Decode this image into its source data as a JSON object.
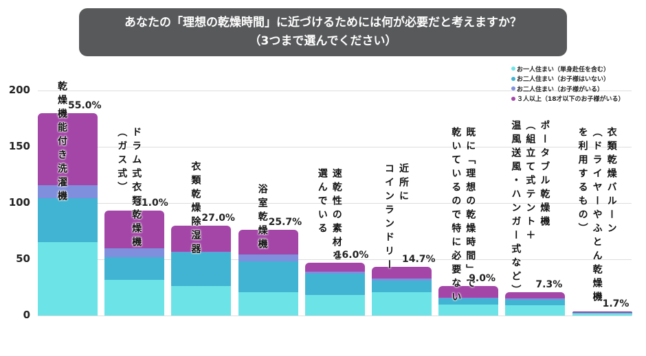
{
  "title": {
    "line1": "あなたの「理想の乾燥時間」に近づけるためには何が必要だと考えますか？",
    "line2": "（3つまで選んでください）"
  },
  "colors": {
    "series": [
      "#6ce3e6",
      "#41b3d3",
      "#7f8fde",
      "#a446a8"
    ]
  },
  "chart_data": {
    "type": "bar",
    "stacked": true,
    "ylim": [
      0,
      200
    ],
    "yticks": [
      "0",
      "50",
      "100",
      "150",
      "200"
    ],
    "grid": true,
    "legend_position": "top-right",
    "categories": [
      [
        "乾燥機能付き洗濯機"
      ],
      [
        "ドラム式衣類乾燥機",
        "（ガス式）"
      ],
      [
        "衣類乾燥除湿器"
      ],
      [
        "浴室乾燥機"
      ],
      [
        "速乾性の素材を",
        "選んでいる"
      ],
      [
        "近所に",
        "コインランドリー"
      ],
      [
        "既に「理想の乾燥時間」で",
        "乾いているので特に必要ない"
      ],
      [
        "ポータブル乾燥機",
        "（組立て式テント＋",
        "温風送風・ハンガー式など）"
      ],
      [
        "衣類乾燥バルーン",
        "（ドライヤーやふとん乾燥機",
        "を利用するもの）"
      ]
    ],
    "percent_labels": [
      "55.0%",
      "31.0%",
      "27.0%",
      "25.7%",
      "16.0%",
      "14.7%",
      "9.0%",
      "7.3%",
      "1.7%"
    ],
    "series": [
      {
        "name": "お一人住まい（単身赴任を含む）",
        "values": [
          65,
          32,
          26,
          21,
          18,
          21,
          10,
          9,
          2
        ]
      },
      {
        "name": "お二人住まい（お子様はいない）",
        "values": [
          39,
          20,
          30,
          27,
          19,
          10,
          5,
          5,
          0.5
        ]
      },
      {
        "name": "お二人住まい（お子様がいる）",
        "values": [
          12,
          8,
          1,
          6,
          2,
          2,
          1,
          1,
          0
        ]
      },
      {
        "name": "３人以上（18才以下のお子様がいる）",
        "values": [
          64,
          33,
          23,
          22,
          8,
          10,
          10,
          6,
          1
        ]
      }
    ]
  }
}
